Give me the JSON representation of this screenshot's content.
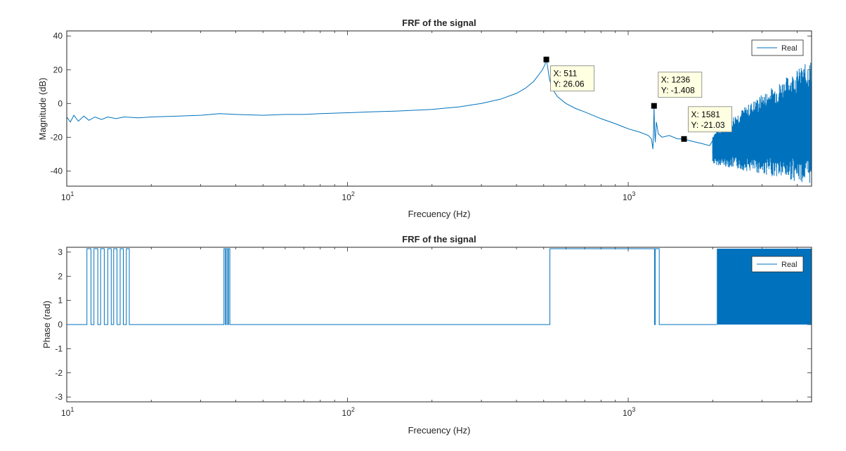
{
  "chart_data": [
    {
      "type": "line",
      "title": "FRF of the signal",
      "xlabel": "Frecuency (Hz)",
      "ylabel": "Magnitude (dB)",
      "xscale": "log",
      "xlim": [
        10,
        4500
      ],
      "ylim": [
        -49,
        43
      ],
      "xticks": [
        {
          "value": 10,
          "base": "10",
          "exp": "1"
        },
        {
          "value": 100,
          "base": "10",
          "exp": "2"
        },
        {
          "value": 1000,
          "base": "10",
          "exp": "3"
        }
      ],
      "yticks": [
        40,
        20,
        0,
        -20,
        -40
      ],
      "legend": {
        "position": "top-right",
        "entries": [
          "Real"
        ]
      },
      "color": "#0072bd",
      "series": [
        {
          "name": "Real",
          "x": [
            10,
            10.3,
            10.6,
            11,
            11.5,
            12,
            12.6,
            13.3,
            14,
            15,
            16,
            18,
            20,
            25,
            30,
            35,
            40,
            50,
            60,
            70,
            80,
            100,
            120,
            150,
            200,
            250,
            300,
            350,
            400,
            430,
            460,
            480,
            495,
            505,
            511,
            516,
            525,
            540,
            560,
            600,
            650,
            700,
            800,
            900,
            1000,
            1100,
            1180,
            1210,
            1225,
            1232,
            1236,
            1240,
            1248,
            1260,
            1280,
            1320,
            1400,
            1500,
            1581,
            1650,
            1750,
            1850,
            1950,
            2000,
            2100,
            2200,
            2400,
            2600,
            2800,
            3000,
            3300,
            3600,
            4000,
            4300,
            4500
          ],
          "y": [
            -8,
            -11,
            -7,
            -10.5,
            -7.5,
            -10,
            -8,
            -9.5,
            -8,
            -9,
            -8,
            -8.5,
            -8,
            -7.5,
            -7,
            -6,
            -6.5,
            -7,
            -6.5,
            -6.5,
            -6,
            -5.5,
            -5,
            -4.5,
            -3.5,
            -2,
            0,
            2.5,
            6,
            9,
            13,
            17,
            20,
            23,
            26.06,
            22,
            14,
            8,
            4,
            0,
            -3,
            -5,
            -9,
            -12,
            -15,
            -17,
            -19,
            -21,
            -27,
            -15,
            -1.408,
            -14,
            -23,
            -11,
            -18,
            -20,
            -19,
            -21,
            -21.03,
            -22,
            -23,
            -24,
            -25,
            -22,
            -24,
            -20,
            -18,
            -14,
            -10,
            -8,
            -6,
            -4,
            -3,
            -1,
            -2
          ],
          "noise": {
            "x_start": 2000,
            "x_end": 4500,
            "upper_start": -18,
            "upper_end": 26,
            "lower_start": -36,
            "lower_end": -48
          }
        }
      ],
      "datatips": [
        {
          "x": 511,
          "y": 26.06,
          "label_x": "X: 511",
          "label_y": "Y: 26.06"
        },
        {
          "x": 1236,
          "y": -1.408,
          "label_x": "X: 1236",
          "label_y": "Y: -1.408"
        },
        {
          "x": 1581,
          "y": -21.03,
          "label_x": "X: 1581",
          "label_y": "Y: -21.03"
        }
      ]
    },
    {
      "type": "line",
      "title": "FRF of the signal",
      "xlabel": "Frecuency (Hz)",
      "ylabel": "Phase (rad)",
      "xscale": "log",
      "xlim": [
        10,
        4500
      ],
      "ylim": [
        -3.2,
        3.2
      ],
      "xticks": [
        {
          "value": 10,
          "base": "10",
          "exp": "1"
        },
        {
          "value": 100,
          "base": "10",
          "exp": "2"
        },
        {
          "value": 1000,
          "base": "10",
          "exp": "3"
        }
      ],
      "yticks": [
        3,
        2,
        1,
        0,
        -1,
        -2,
        -3
      ],
      "legend": {
        "position": "top-right",
        "entries": [
          "Real"
        ]
      },
      "color": "#0072bd",
      "series": [
        {
          "name": "Real",
          "high_value": 3.1416,
          "low_value": 0,
          "high_intervals": [
            [
              11.8,
              12.2
            ],
            [
              12.5,
              12.9
            ],
            [
              13.2,
              13.6
            ],
            [
              14.0,
              14.4
            ],
            [
              14.7,
              15.1
            ],
            [
              15.5,
              15.9
            ],
            [
              16.3,
              16.7
            ],
            [
              36.3,
              36.7
            ],
            [
              37.0,
              37.4
            ],
            [
              37.7,
              38.1
            ],
            [
              526,
              1240
            ],
            [
              1250,
              1290
            ]
          ],
          "dense_start": 2070,
          "dense_end": 4500
        }
      ]
    }
  ]
}
